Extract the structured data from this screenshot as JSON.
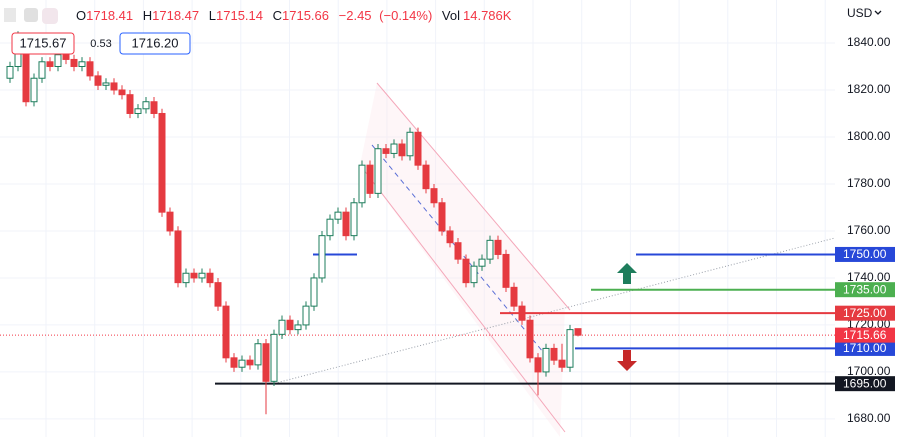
{
  "header": {
    "open_label": "O",
    "high_label": "H",
    "low_label": "L",
    "close_label": "C",
    "change": "−2.45",
    "change_pct": "(−0.14%)",
    "volume_label": "Vol",
    "volume": "14.786K",
    "bid": "1715.67",
    "spread": "0.53",
    "ask": "1716.20",
    "currency": "USD"
  },
  "chart_data": {
    "type": "candlestick",
    "open": [
      1825,
      1830,
      1838,
      1815,
      1825,
      1832,
      1830,
      1835,
      1833,
      1830,
      1832,
      1826,
      1822,
      1823,
      1820,
      1818,
      1810,
      1812,
      1815,
      1810,
      1768,
      1760,
      1738,
      1742,
      1740,
      1742,
      1738,
      1728,
      1706,
      1702,
      1705,
      1703,
      1712,
      1696,
      1716,
      1722,
      1718,
      1720,
      1728,
      1740,
      1758,
      1765,
      1768,
      1758,
      1772,
      1788,
      1776,
      1795,
      1793,
      1797,
      1792,
      1802,
      1788,
      1778,
      1772,
      1760,
      1755,
      1748,
      1738,
      1745,
      1748,
      1756,
      1750,
      1736,
      1728,
      1722,
      1706,
      1700,
      1710,
      1705,
      1702,
      1718.41
    ],
    "high": [
      1832,
      1845,
      1840,
      1827,
      1834,
      1834,
      1837,
      1837,
      1835,
      1834,
      1834,
      1828,
      1825,
      1825,
      1822,
      1820,
      1814,
      1817,
      1817,
      1812,
      1770,
      1762,
      1744,
      1744,
      1744,
      1744,
      1740,
      1730,
      1708,
      1707,
      1707,
      1714,
      1714,
      1718,
      1724,
      1724,
      1722,
      1730,
      1742,
      1760,
      1767,
      1770,
      1770,
      1774,
      1790,
      1790,
      1797,
      1797,
      1799,
      1799,
      1804,
      1804,
      1790,
      1780,
      1774,
      1762,
      1757,
      1750,
      1747,
      1750,
      1758,
      1758,
      1752,
      1738,
      1730,
      1724,
      1708,
      1712,
      1712,
      1712,
      1720,
      1718.47
    ],
    "low": [
      1823,
      1828,
      1813,
      1813,
      1823,
      1828,
      1828,
      1831,
      1828,
      1828,
      1824,
      1820,
      1820,
      1818,
      1816,
      1808,
      1808,
      1810,
      1808,
      1766,
      1758,
      1736,
      1736,
      1738,
      1738,
      1736,
      1726,
      1704,
      1700,
      1700,
      1701,
      1701,
      1682,
      1694,
      1714,
      1716,
      1716,
      1718,
      1726,
      1738,
      1756,
      1763,
      1756,
      1756,
      1770,
      1774,
      1774,
      1791,
      1791,
      1790,
      1790,
      1786,
      1776,
      1770,
      1758,
      1753,
      1746,
      1736,
      1736,
      1743,
      1746,
      1748,
      1734,
      1726,
      1720,
      1704,
      1690,
      1698,
      1703,
      1700,
      1700,
      1715.14
    ],
    "close": [
      1830,
      1838,
      1815,
      1825,
      1832,
      1830,
      1835,
      1833,
      1830,
      1832,
      1826,
      1822,
      1823,
      1820,
      1818,
      1810,
      1812,
      1815,
      1810,
      1768,
      1760,
      1738,
      1742,
      1740,
      1742,
      1738,
      1728,
      1706,
      1702,
      1705,
      1703,
      1712,
      1696,
      1716,
      1722,
      1718,
      1720,
      1728,
      1740,
      1758,
      1765,
      1768,
      1758,
      1772,
      1788,
      1776,
      1795,
      1793,
      1797,
      1792,
      1802,
      1788,
      1778,
      1772,
      1760,
      1755,
      1748,
      1738,
      1745,
      1748,
      1756,
      1750,
      1736,
      1728,
      1722,
      1706,
      1700,
      1710,
      1705,
      1702,
      1718,
      1715.66
    ],
    "up_color": "#1e7d5c",
    "down_color": "#e53a40",
    "ylim": [
      1672.3,
      1858.3
    ],
    "yticks": [
      {
        "value": 1680,
        "label": "1680.00"
      },
      {
        "value": 1700,
        "label": "1700.00"
      },
      {
        "value": 1720,
        "label": "1720.00"
      },
      {
        "value": 1740,
        "label": "1740.00"
      },
      {
        "value": 1760,
        "label": "1760.00"
      },
      {
        "value": 1780,
        "label": "1780.00"
      },
      {
        "value": 1800,
        "label": "1800.00"
      },
      {
        "value": 1820,
        "label": "1820.00"
      },
      {
        "value": 1840,
        "label": "1840.00"
      }
    ],
    "grid": true,
    "levels": [
      {
        "value": 1750,
        "label": "1750.00",
        "color": "#2748d8"
      },
      {
        "value": 1735,
        "label": "1735.00",
        "color": "#4caf50"
      },
      {
        "value": 1725,
        "label": "1725.00",
        "color": "#e53a40"
      },
      {
        "value": 1710,
        "label": "1710.00",
        "color": "#2748d8"
      },
      {
        "value": 1695,
        "label": "1695.00",
        "color": "#131722"
      }
    ],
    "last_price_color": "#f23645"
  }
}
